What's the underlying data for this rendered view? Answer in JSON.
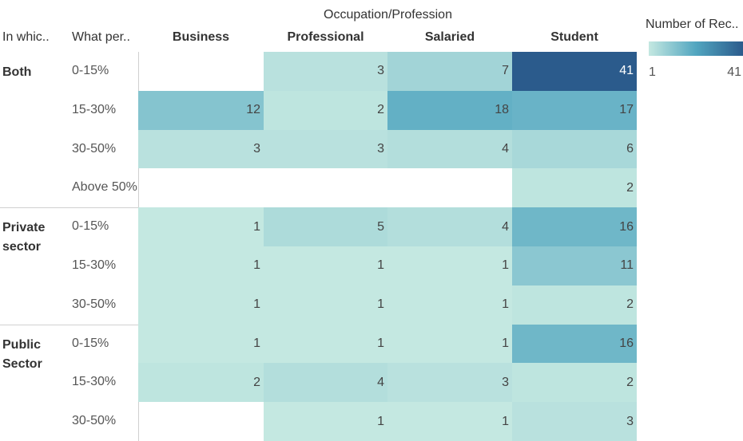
{
  "chart_data": {
    "type": "heatmap",
    "header_title": "Occupation/Profession",
    "row_headers": [
      "In whic..",
      "What per.."
    ],
    "columns": [
      "Business",
      "Professional",
      "Salaried",
      "Student"
    ],
    "groups": [
      {
        "name": "Both",
        "rows": [
          {
            "label": "0-15%",
            "values": [
              null,
              3,
              7,
              41
            ]
          },
          {
            "label": "15-30%",
            "values": [
              12,
              2,
              18,
              17
            ]
          },
          {
            "label": "30-50%",
            "values": [
              3,
              3,
              4,
              6
            ]
          },
          {
            "label": "Above 50%",
            "values": [
              null,
              null,
              null,
              2
            ]
          }
        ]
      },
      {
        "name": "Private sector",
        "rows": [
          {
            "label": "0-15%",
            "values": [
              1,
              5,
              4,
              16
            ]
          },
          {
            "label": "15-30%",
            "values": [
              1,
              1,
              1,
              11
            ]
          },
          {
            "label": "30-50%",
            "values": [
              1,
              1,
              1,
              2
            ]
          }
        ]
      },
      {
        "name": "Public Sector",
        "rows": [
          {
            "label": "0-15%",
            "values": [
              1,
              1,
              1,
              16
            ]
          },
          {
            "label": "15-30%",
            "values": [
              2,
              4,
              3,
              2
            ]
          },
          {
            "label": "30-50%",
            "values": [
              null,
              1,
              1,
              3
            ]
          }
        ]
      }
    ],
    "legend_title": "Number of Rec..",
    "color_range": [
      1,
      41
    ],
    "colors": [
      "#c4e8e1",
      "#52a6c0",
      "#2b5b8c"
    ]
  }
}
